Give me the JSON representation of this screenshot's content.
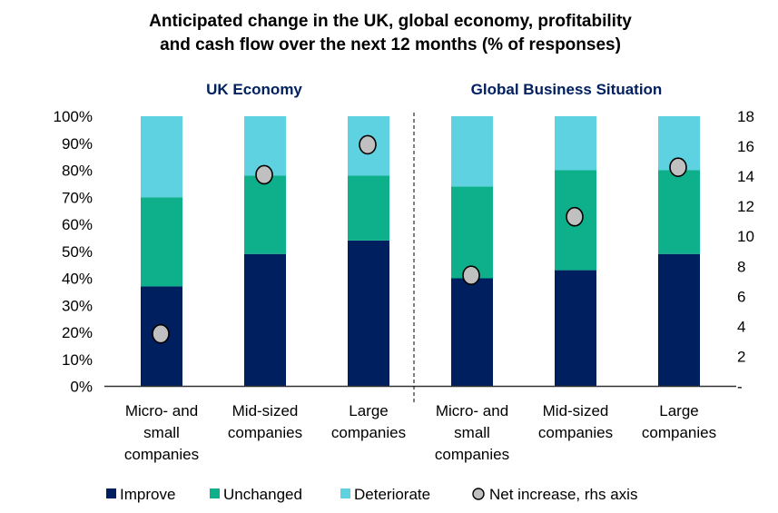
{
  "chart_data": {
    "type": "bar",
    "stacked": true,
    "title_lines": [
      "Anticipated change in the UK, global economy, profitability",
      "and cash flow over the next 12 months (% of responses)"
    ],
    "panels": [
      {
        "title": "UK Economy",
        "categories": [
          [
            "Micro- and",
            "small",
            "companies"
          ],
          [
            "Mid-sized",
            "companies"
          ],
          [
            "Large",
            "companies"
          ]
        ]
      },
      {
        "title": "Global Business Situation",
        "categories": [
          [
            "Micro- and",
            "small",
            "companies"
          ],
          [
            "Mid-sized",
            "companies"
          ],
          [
            "Large",
            "companies"
          ]
        ]
      }
    ],
    "series": [
      {
        "name": "Improve",
        "color": "#001f5f",
        "values": [
          37,
          49,
          54,
          40,
          43,
          49
        ]
      },
      {
        "name": "Unchanged",
        "color": "#0db08b",
        "values": [
          33,
          29,
          24,
          34,
          37,
          31
        ]
      },
      {
        "name": "Deteriorate",
        "color": "#5fd2e2",
        "values": [
          30,
          22,
          22,
          26,
          20,
          20
        ]
      }
    ],
    "line_series": {
      "name": "Net increase, rhs axis",
      "type": "scatter",
      "axis": "right",
      "color": "#c0c0c0",
      "values": [
        3.5,
        14.1,
        16.1,
        7.4,
        11.3,
        14.6
      ]
    },
    "y_left": {
      "range": [
        0,
        100
      ],
      "ticks": [
        "0%",
        "10%",
        "20%",
        "30%",
        "40%",
        "50%",
        "60%",
        "70%",
        "80%",
        "90%",
        "100%"
      ]
    },
    "y_right": {
      "range": [
        0,
        18
      ],
      "ticks": [
        "-",
        "2",
        "4",
        "6",
        "8",
        "10",
        "12",
        "14",
        "16",
        "18"
      ]
    },
    "grid": false,
    "legend_position": "bottom",
    "accent_color": "#002060"
  }
}
